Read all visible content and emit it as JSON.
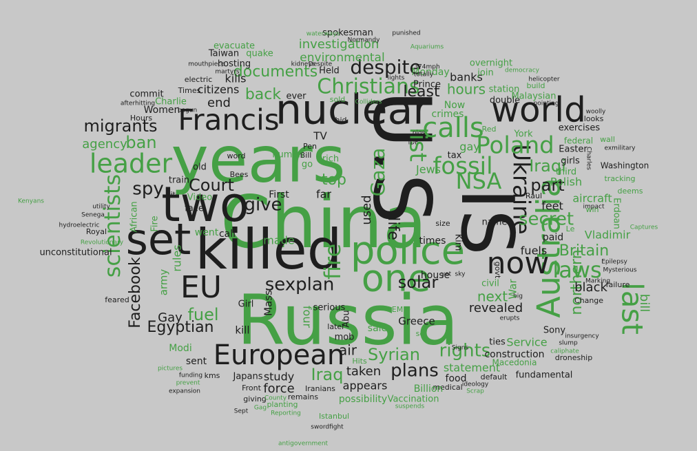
{
  "words": [
    "Russia",
    "China",
    "years",
    "U.S",
    "IS",
    "killed",
    "nuclear",
    "police",
    "two",
    "set",
    "one",
    "world",
    "Francis",
    "European",
    "EU",
    "Australia",
    "Ukraine",
    "now",
    "last",
    "leader",
    "scientists",
    "calls",
    "Poland",
    "fossil",
    "NSA",
    "Christians",
    "despite",
    "documents",
    "investigation",
    "environmental",
    "migrants",
    "Court",
    "spy",
    "give",
    "sexplan",
    "solar",
    "fire",
    "Gaza",
    "list",
    "laws",
    "secret",
    "Britain",
    "part",
    "Iraqi",
    "Syrian",
    "rights",
    "plans",
    "Iraq",
    "Egyptian",
    "fuel",
    "Facebook",
    "Gay",
    "ban",
    "agency",
    "back",
    "kills",
    "citizens",
    "end",
    "least",
    "hours",
    "banks",
    "Monday",
    "next",
    "revealed",
    "northern",
    "black",
    "fuels",
    "paid",
    "Vladimir",
    "aircraft",
    "Polish",
    "feet",
    "top",
    "far",
    "Jews",
    "gay",
    "Washington",
    "exercises",
    "looks",
    "federal",
    "wall",
    "tracking",
    "deems",
    "Erdoan",
    "Easter",
    "girls",
    "third",
    "bill",
    "Sony",
    "Change",
    "failure",
    "Service",
    "ties",
    "construction",
    "statement",
    "Macedonia",
    "fundamental",
    "food",
    "default",
    "medical",
    "Vaccination",
    "Billion",
    "possibility",
    "appears",
    "taken",
    "air",
    "force",
    "study",
    "Japans",
    "Iranians",
    "remains",
    "giving",
    "Front",
    "planting",
    "Istanbul",
    "sent",
    "Modi",
    "kms",
    "Mass",
    "Girl",
    "kill",
    "serious",
    "four",
    "Greece",
    "house",
    "civil",
    "times",
    "size",
    "life",
    "used",
    "made",
    "call",
    "went",
    "First",
    "Video",
    "face",
    "old",
    "train",
    "kit",
    "rules",
    "army",
    "Fire",
    "African",
    "Royal",
    "unconstitutional",
    "Women",
    "Charlie",
    "commit",
    "Hours",
    "electric",
    "Times",
    "hosting",
    "Taiwan",
    "quake",
    "evacuate",
    "spokesman",
    "Held",
    "ever",
    "Now",
    "crimes",
    "Prince",
    "overnight",
    "station",
    "join",
    "double",
    "Malaysian",
    "build",
    "York",
    "tax",
    "TV",
    "Pen",
    "Bill",
    "go",
    "rich",
    "human",
    "word",
    "Bees",
    "Kim",
    "Raul",
    "name",
    "govt",
    "Abu",
    "mob",
    "later",
    "sale",
    "EM",
    "Kenyans",
    "antigovernment",
    "Revolutionary",
    "Senega",
    "hydroelectric",
    "utility",
    "feared",
    "Sept",
    "swordfight",
    "droneship",
    "insurgency",
    "caliphate",
    "slump",
    "Epilepsy",
    "Mysterious",
    "Captures",
    "exmilitary",
    "woolly",
    "Charles",
    "democracy",
    "helicopter",
    "pointing",
    "Normandy",
    "punished",
    "Aquariums",
    "waterways",
    "mouthpiece",
    "martyrs",
    "kidneys",
    "374mph",
    "lights",
    "totally",
    "Despite",
    "Colliders",
    "sold",
    "hid",
    "afterhitting",
    "begun",
    "pictures",
    "funding",
    "prevent",
    "expansion",
    "Reporting",
    "County",
    "Gag",
    "Scrap",
    "ideology",
    "suspends",
    "Hits",
    "sq",
    "yet",
    "sky",
    "big",
    "erupts",
    "Signs",
    "pigs",
    "IDF",
    "Red",
    "War",
    "Le",
    "win",
    "Marking",
    "impact"
  ]
}
